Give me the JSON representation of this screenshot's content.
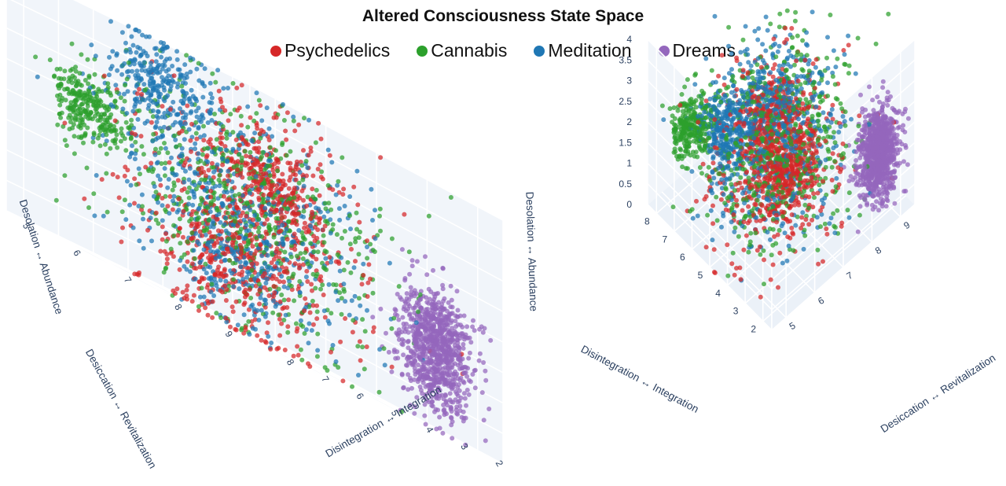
{
  "chart_data": {
    "type": "scatter",
    "title": "Altered Consciousness State Space",
    "legend_position": "top-center",
    "series": [
      {
        "name": "Psychedelics",
        "color": "#d62728"
      },
      {
        "name": "Cannabis",
        "color": "#2ca02c"
      },
      {
        "name": "Meditation",
        "color": "#1f77b4"
      },
      {
        "name": "Dreams",
        "color": "#9467bd"
      }
    ],
    "axes": {
      "x": {
        "label": "Disintegration ↔ Integration",
        "range": [
          1.5,
          8.5
        ],
        "ticks": [
          2,
          3,
          4,
          5,
          6,
          7,
          8
        ]
      },
      "y": {
        "label": "Desiccation ↔ Revitalization",
        "range": [
          4.5,
          9.5
        ],
        "ticks": [
          5,
          6,
          7,
          8,
          9
        ]
      },
      "z": {
        "label": "Desolation ↔ Abundance",
        "range": [
          0,
          4
        ],
        "ticks": [
          0,
          0.5,
          1,
          1.5,
          2,
          2.5,
          3,
          3.5,
          4
        ]
      }
    },
    "grid": true,
    "points_per_series": 900,
    "clusters": [
      {
        "series": "Psychedelics",
        "center": [
          2.8,
          5.8,
          2.6
        ],
        "spread": [
          0.5,
          0.5,
          0.5
        ],
        "share": 0.35
      },
      {
        "series": "Psychedelics",
        "center": [
          4.5,
          6.5,
          1.6
        ],
        "spread": [
          1.2,
          1.0,
          0.9
        ],
        "share": 0.45
      },
      {
        "series": "Psychedelics",
        "center": [
          6.8,
          7.6,
          1.0
        ],
        "spread": [
          0.4,
          0.4,
          0.5
        ],
        "share": 0.2
      },
      {
        "series": "Cannabis",
        "center": [
          6.8,
          4.9,
          2.4
        ],
        "spread": [
          0.3,
          0.3,
          0.3
        ],
        "share": 0.3
      },
      {
        "series": "Cannabis",
        "center": [
          4.5,
          6.5,
          2.0
        ],
        "spread": [
          1.3,
          1.0,
          0.9
        ],
        "share": 0.7
      },
      {
        "series": "Meditation",
        "center": [
          4.6,
          4.8,
          3.3
        ],
        "spread": [
          0.5,
          0.4,
          0.4
        ],
        "share": 0.3
      },
      {
        "series": "Meditation",
        "center": [
          4.8,
          6.5,
          2.0
        ],
        "spread": [
          1.2,
          1.0,
          0.9
        ],
        "share": 0.5
      },
      {
        "series": "Meditation",
        "center": [
          6.8,
          7.8,
          1.2
        ],
        "spread": [
          0.4,
          0.4,
          0.5
        ],
        "share": 0.2
      },
      {
        "series": "Dreams",
        "center": [
          2.4,
          8.8,
          1.3
        ],
        "spread": [
          0.3,
          0.3,
          0.5
        ],
        "share": 1.0
      }
    ],
    "panels": [
      {
        "name": "left-3d-plot"
      },
      {
        "name": "right-3d-plot"
      }
    ]
  }
}
